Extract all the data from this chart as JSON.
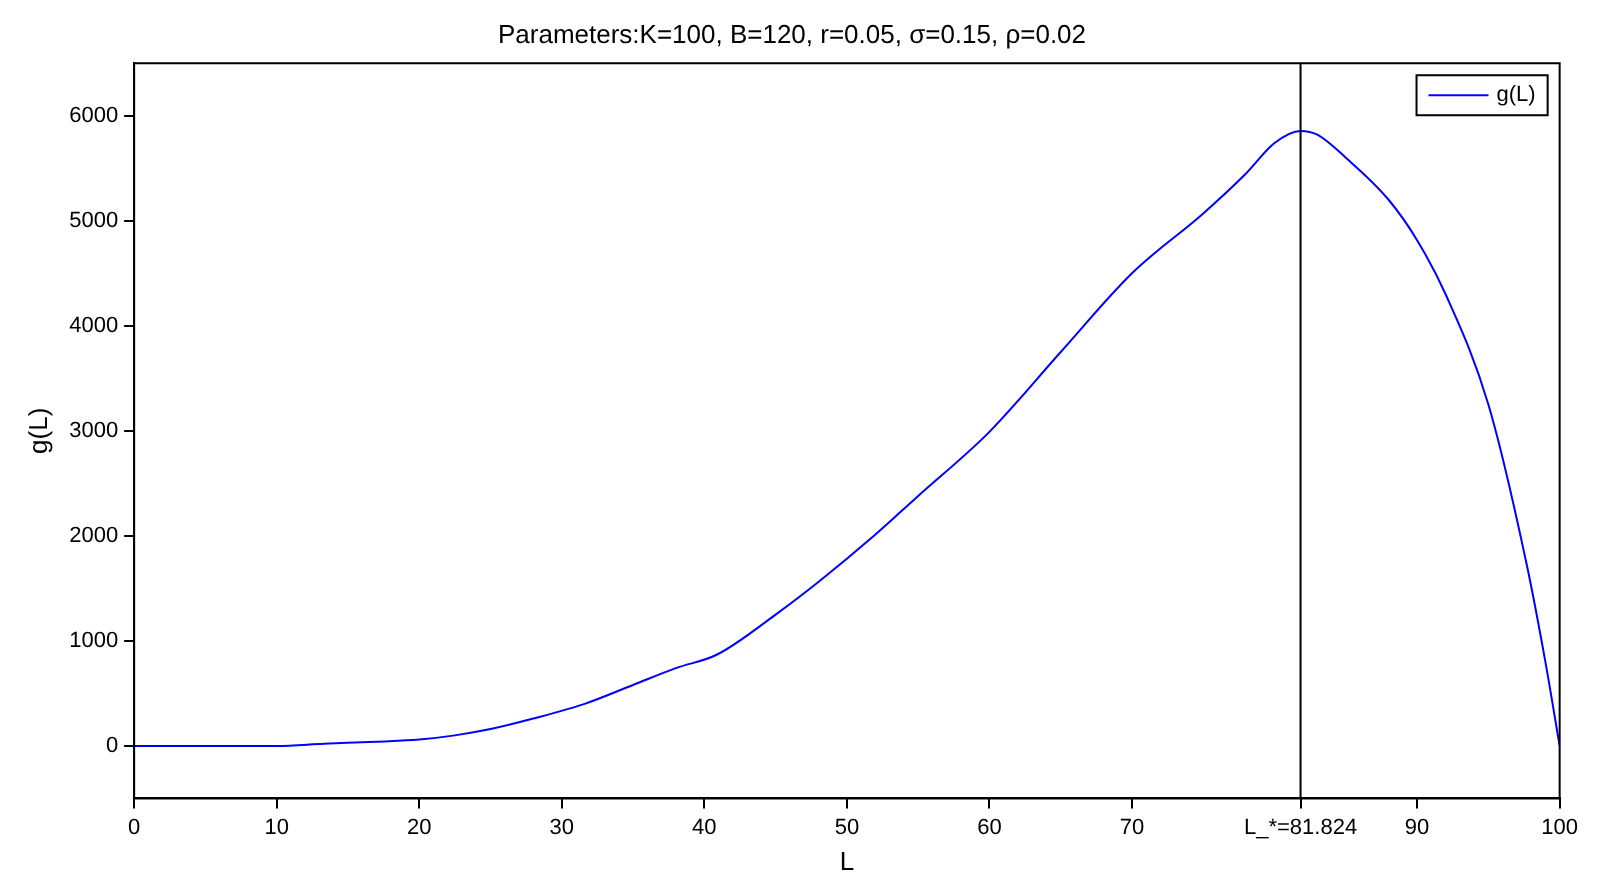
{
  "chart_data": {
    "type": "line",
    "title": "Parameters:K=100, B=120, r=0.05, σ=0.15, ρ=0.02",
    "xlabel": "L",
    "ylabel": "g(L)",
    "xlim": [
      0,
      100
    ],
    "ylim": [
      -500,
      6500
    ],
    "xticks": [
      0,
      10,
      20,
      30,
      40,
      50,
      60,
      70,
      {
        "value": 81.824,
        "label": "L_*=81.824"
      },
      90,
      100
    ],
    "yticks": [
      0,
      1000,
      2000,
      3000,
      4000,
      5000,
      6000
    ],
    "series": [
      {
        "name": "g(L)",
        "color": "#0000ff",
        "x": [
          0,
          5,
          10,
          13.3,
          17,
          20,
          22.5,
          25,
          28,
          31.6,
          35,
          38,
          40.9,
          45,
          48,
          51.9,
          55,
          60,
          65,
          70,
          75,
          78,
          80,
          81.824,
          83,
          85,
          88,
          90,
          92,
          95,
          97.7,
          99,
          100
        ],
        "values": [
          0,
          0,
          0,
          20,
          40,
          60,
          100,
          160,
          260,
          400,
          580,
          740,
          870,
          1250,
          1560,
          2000,
          2380,
          2990,
          3750,
          4500,
          5070,
          5450,
          5740,
          5855,
          5820,
          5600,
          5200,
          4815,
          4300,
          3250,
          1720,
          800,
          0
        ]
      }
    ],
    "ref_lines": [
      {
        "axis": "x",
        "value": 81.824,
        "color": "#000000"
      }
    ],
    "legend": "top right",
    "grid": false,
    "marker": "none",
    "line_style": "solid"
  }
}
